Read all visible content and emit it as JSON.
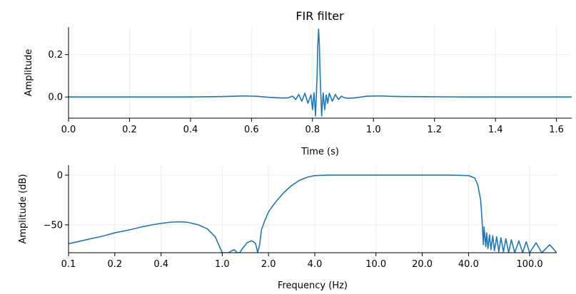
{
  "title": "FIR filter",
  "colors": {
    "series": "#1f77b4",
    "grid": "#ececec"
  },
  "chart_data": [
    {
      "type": "line",
      "title": "FIR filter",
      "xlabel": "Time (s)",
      "ylabel": "Amplitude",
      "xlim": [
        0.0,
        1.65
      ],
      "ylim": [
        -0.1,
        0.33
      ],
      "grid": true,
      "xticks": [
        0.0,
        0.2,
        0.4,
        0.6,
        0.8,
        1.0,
        1.2,
        1.4,
        1.6
      ],
      "xtick_labels": [
        "0.0",
        "0.2",
        "0.4",
        "0.6",
        "0.8",
        "1.0",
        "1.2",
        "1.4",
        "1.6"
      ],
      "yticks": [
        0.0,
        0.2
      ],
      "ytick_labels": [
        "0.0",
        "0.2"
      ],
      "series": [
        {
          "x": [
            0.0,
            0.1,
            0.2,
            0.3,
            0.4,
            0.45,
            0.5,
            0.55,
            0.58,
            0.62,
            0.66,
            0.7,
            0.72,
            0.735,
            0.745,
            0.755,
            0.765,
            0.775,
            0.785,
            0.795,
            0.8,
            0.805,
            0.81,
            0.815,
            0.8175,
            0.82,
            0.8225,
            0.825,
            0.83,
            0.835,
            0.84,
            0.845,
            0.85,
            0.855,
            0.865,
            0.875,
            0.885,
            0.895,
            0.905,
            0.92,
            0.94,
            0.98,
            1.02,
            1.06,
            1.1,
            1.2,
            1.3,
            1.4,
            1.5,
            1.6,
            1.65
          ],
          "y": [
            0.0,
            0.0,
            0.0,
            0.0,
            0.0,
            0.001,
            0.002,
            0.004,
            0.005,
            0.003,
            -0.002,
            -0.005,
            -0.004,
            0.004,
            -0.012,
            0.012,
            -0.02,
            0.018,
            -0.03,
            0.01,
            -0.06,
            0.02,
            -0.09,
            0.1,
            0.25,
            0.32,
            0.25,
            0.1,
            -0.09,
            0.02,
            -0.06,
            0.01,
            -0.03,
            0.018,
            -0.02,
            0.012,
            -0.012,
            0.004,
            -0.004,
            -0.006,
            -0.004,
            0.004,
            0.005,
            0.003,
            0.002,
            0.001,
            0.0,
            0.0,
            0.0,
            0.0,
            0.0
          ]
        }
      ]
    },
    {
      "type": "line",
      "xlabel": "Frequency (Hz)",
      "ylabel": "Amplitude (dB)",
      "xscale": "log",
      "xlim": [
        0.1,
        150
      ],
      "ylim": [
        -78,
        10
      ],
      "grid": true,
      "xticks": [
        0.1,
        0.2,
        0.4,
        1.0,
        2.0,
        4.0,
        10.0,
        20.0,
        40.0,
        100.0
      ],
      "xtick_labels": [
        "0.1",
        "0.2",
        "0.4",
        "1.0",
        "2.0",
        "4.0",
        "10.0",
        "20.0",
        "40.0",
        "100.0"
      ],
      "yticks": [
        0,
        -50
      ],
      "ytick_labels": [
        "0",
        "−50"
      ],
      "series": [
        {
          "x": [
            0.1,
            0.13,
            0.17,
            0.2,
            0.25,
            0.3,
            0.35,
            0.4,
            0.45,
            0.5,
            0.55,
            0.6,
            0.7,
            0.8,
            0.9,
            1.0,
            1.1,
            1.15,
            1.2,
            1.25,
            1.3,
            1.35,
            1.4,
            1.45,
            1.5,
            1.55,
            1.6,
            1.65,
            1.7,
            1.75,
            1.8,
            1.9,
            2.0,
            2.2,
            2.5,
            2.8,
            3.2,
            3.6,
            4.0,
            5.0,
            10.0,
            20.0,
            30.0,
            40.0,
            44.0,
            46.0,
            48.0,
            49.0,
            50.0,
            50.5,
            51.0,
            51.8,
            52.5,
            53.5,
            54.8,
            56.0,
            57.5,
            59.0,
            61.0,
            63.0,
            65.0,
            67.5,
            70.0,
            73.0,
            76.0,
            80.0,
            85.0,
            90.0,
            95.0,
            100.0,
            110.0,
            120.0,
            135.0,
            150.0
          ],
          "y": [
            -69,
            -65,
            -61,
            -58,
            -55,
            -52,
            -50,
            -48.5,
            -47.5,
            -47,
            -47,
            -47.5,
            -50,
            -54,
            -62,
            -78,
            -78,
            -76,
            -75,
            -78,
            -78,
            -74,
            -71,
            -68,
            -67,
            -66,
            -67,
            -69,
            -78,
            -70,
            -55,
            -45,
            -37,
            -28,
            -18,
            -11,
            -5,
            -2,
            -0.5,
            0,
            0,
            0,
            0,
            -0.5,
            -3,
            -10,
            -25,
            -45,
            -70,
            -52,
            -60,
            -72,
            -58,
            -74,
            -60,
            -75,
            -61,
            -76,
            -62,
            -77,
            -63,
            -77,
            -64,
            -78,
            -65,
            -78,
            -66,
            -78,
            -67,
            -78,
            -68,
            -78,
            -70,
            -78
          ]
        }
      ]
    }
  ]
}
